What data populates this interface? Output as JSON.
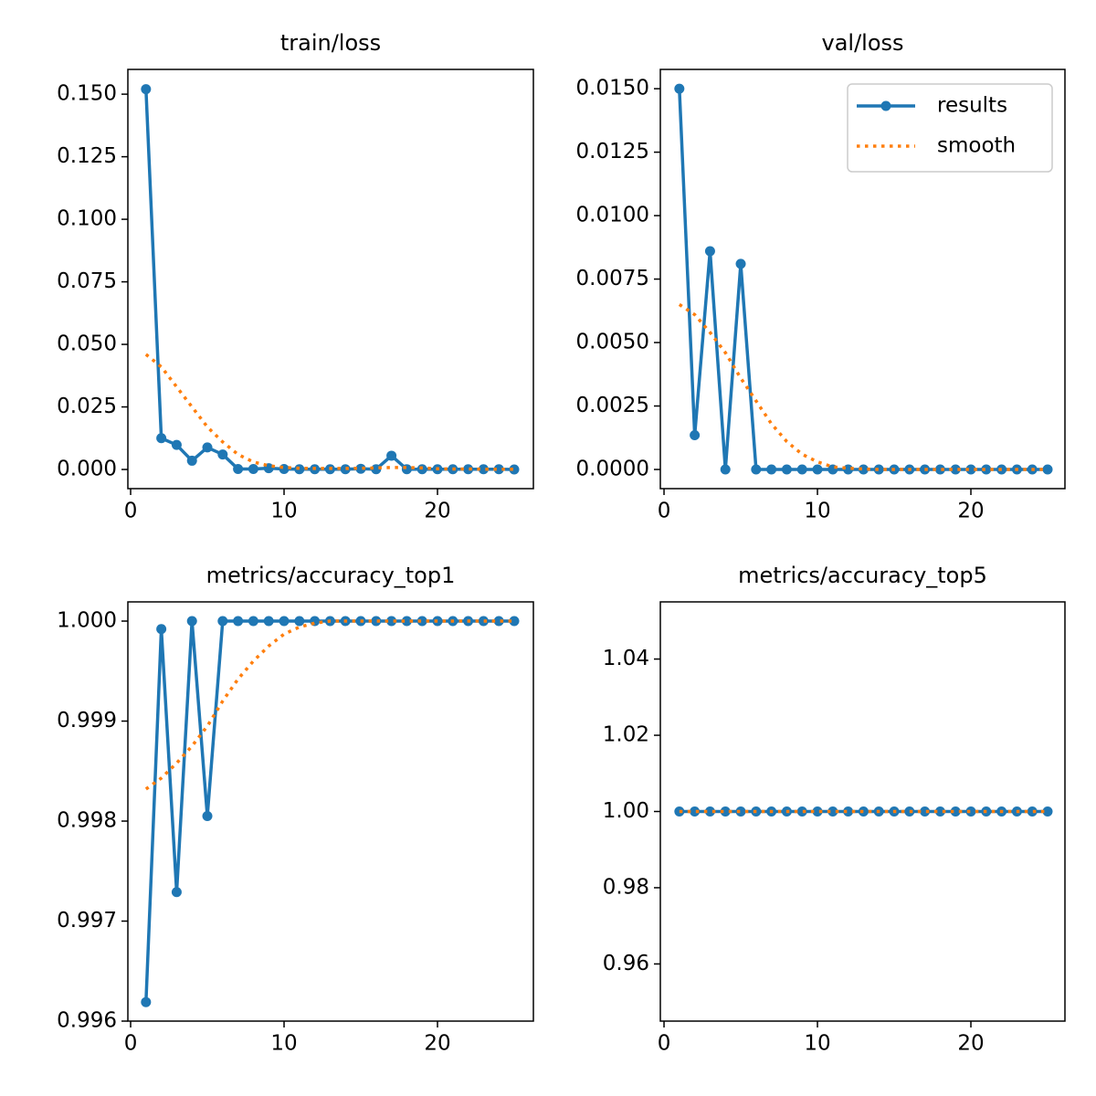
{
  "chart_data": [
    {
      "type": "line",
      "title": "train/loss",
      "x": [
        1,
        2,
        3,
        4,
        5,
        6,
        7,
        8,
        9,
        10,
        11,
        12,
        13,
        14,
        15,
        16,
        17,
        18,
        19,
        20,
        21,
        22,
        23,
        24,
        25
      ],
      "series": [
        {
          "name": "results",
          "color": "#1f77b4",
          "marker": "o",
          "linestyle": "-",
          "values": [
            0.152,
            0.0125,
            0.0098,
            0.0035,
            0.0088,
            0.006,
            0.0002,
            0.0002,
            0.0005,
            0.0002,
            0.0001,
            0.0001,
            0.0001,
            0.0001,
            0.0003,
            0.0001,
            0.0055,
            0.0001,
            0.0001,
            0.0001,
            0.0001,
            0.0001,
            0.0001,
            0.0001,
            0.0
          ]
        },
        {
          "name": "smooth",
          "color": "#ff7f0e",
          "linestyle": ":",
          "values": [
            0.046,
            0.041,
            0.033,
            0.025,
            0.017,
            0.011,
            0.006,
            0.003,
            0.0015,
            0.0008,
            0.0005,
            0.0004,
            0.0004,
            0.0004,
            0.0005,
            0.0006,
            0.0008,
            0.0008,
            0.0006,
            0.0003,
            0.0002,
            0.0002,
            0.0001,
            0.0001,
            0.0001
          ]
        }
      ],
      "xlim": [
        -0.18,
        26.25
      ],
      "xticks": [
        0,
        10,
        20
      ],
      "ylim": [
        -0.00766,
        0.1599
      ],
      "yticks": [
        {
          "value": 0,
          "label": "0.000"
        },
        0.025,
        {
          "value": 0.05,
          "label": "0.050"
        },
        0.075,
        {
          "value": 0.1,
          "label": "0.100"
        },
        0.125,
        {
          "value": 0.15,
          "label": "0.150"
        }
      ]
    },
    {
      "type": "line",
      "title": "val/loss",
      "legend": "upper right",
      "x": [
        1,
        2,
        3,
        4,
        5,
        6,
        7,
        8,
        9,
        10,
        11,
        12,
        13,
        14,
        15,
        16,
        17,
        18,
        19,
        20,
        21,
        22,
        23,
        24,
        25
      ],
      "series": [
        {
          "name": "results",
          "color": "#1f77b4",
          "marker": "o",
          "linestyle": "-",
          "values": [
            0.015,
            0.00135,
            0.0086,
            0,
            0.0081,
            0,
            0,
            0,
            0,
            0,
            0,
            0,
            0,
            0,
            0,
            0,
            0,
            0,
            0,
            0,
            0,
            0,
            0,
            0,
            0
          ]
        },
        {
          "name": "smooth",
          "color": "#ff7f0e",
          "linestyle": ":",
          "values": [
            0.0065,
            0.0061,
            0.0054,
            0.0046,
            0.0036,
            0.0027,
            0.0018,
            0.0011,
            0.0006,
            0.0003,
            0.0001,
            5e-05,
            2e-05,
            0,
            0,
            0,
            0,
            0,
            0,
            0,
            0,
            0,
            0,
            0,
            0
          ]
        }
      ],
      "xlim": [
        -0.24,
        26.13
      ],
      "xticks": [
        0,
        10,
        20
      ],
      "ylim": [
        -0.000755,
        0.01576
      ],
      "yticks": [
        {
          "value": 0,
          "label": "0.0000"
        },
        0.0025,
        {
          "value": 0.005,
          "label": "0.0050"
        },
        0.0075,
        {
          "value": 0.01,
          "label": "0.0100"
        },
        0.0125,
        {
          "value": 0.015,
          "label": "0.0150"
        }
      ]
    },
    {
      "type": "line",
      "title": "metrics/accuracy_top1",
      "x": [
        1,
        2,
        3,
        4,
        5,
        6,
        7,
        8,
        9,
        10,
        11,
        12,
        13,
        14,
        15,
        16,
        17,
        18,
        19,
        20,
        21,
        22,
        23,
        24,
        25
      ],
      "series": [
        {
          "name": "results",
          "color": "#1f77b4",
          "marker": "o",
          "linestyle": "-",
          "values": [
            0.99619,
            0.99992,
            0.99729,
            1,
            0.99805,
            1,
            1,
            1,
            1,
            1,
            1,
            1,
            1,
            1,
            1,
            1,
            1,
            1,
            1,
            1,
            1,
            1,
            1,
            1,
            1
          ]
        },
        {
          "name": "smooth",
          "color": "#ff7f0e",
          "linestyle": ":",
          "values": [
            0.99832,
            0.99843,
            0.99858,
            0.99875,
            0.99895,
            0.9992,
            0.99942,
            0.9996,
            0.99975,
            0.99987,
            0.99994,
            0.99998,
            1,
            1,
            1,
            1,
            1,
            1,
            1,
            1,
            1,
            1,
            1,
            1,
            1
          ]
        }
      ],
      "xlim": [
        -0.18,
        26.25
      ],
      "xticks": [
        0,
        10,
        20
      ],
      "ylim": [
        0.996,
        1.000192
      ],
      "yticks": [
        0.996,
        0.997,
        0.998,
        0.999,
        {
          "value": 1,
          "label": "1.000"
        }
      ]
    },
    {
      "type": "line",
      "title": "metrics/accuracy_top5",
      "x": [
        1,
        2,
        3,
        4,
        5,
        6,
        7,
        8,
        9,
        10,
        11,
        12,
        13,
        14,
        15,
        16,
        17,
        18,
        19,
        20,
        21,
        22,
        23,
        24,
        25
      ],
      "series": [
        {
          "name": "results",
          "color": "#1f77b4",
          "marker": "o",
          "linestyle": "-",
          "values": [
            1,
            1,
            1,
            1,
            1,
            1,
            1,
            1,
            1,
            1,
            1,
            1,
            1,
            1,
            1,
            1,
            1,
            1,
            1,
            1,
            1,
            1,
            1,
            1,
            1
          ]
        },
        {
          "name": "smooth",
          "color": "#ff7f0e",
          "linestyle": ":",
          "values": [
            1,
            1,
            1,
            1,
            1,
            1,
            1,
            1,
            1,
            1,
            1,
            1,
            1,
            1,
            1,
            1,
            1,
            1,
            1,
            1,
            1,
            1,
            1,
            1,
            1
          ]
        }
      ],
      "xlim": [
        -0.24,
        26.13
      ],
      "xticks": [
        0,
        10,
        20
      ],
      "ylim": [
        0.945,
        1.055
      ],
      "yticks": [
        0.96,
        0.98,
        {
          "value": 1,
          "label": "1.00"
        },
        1.02,
        1.04
      ]
    }
  ]
}
